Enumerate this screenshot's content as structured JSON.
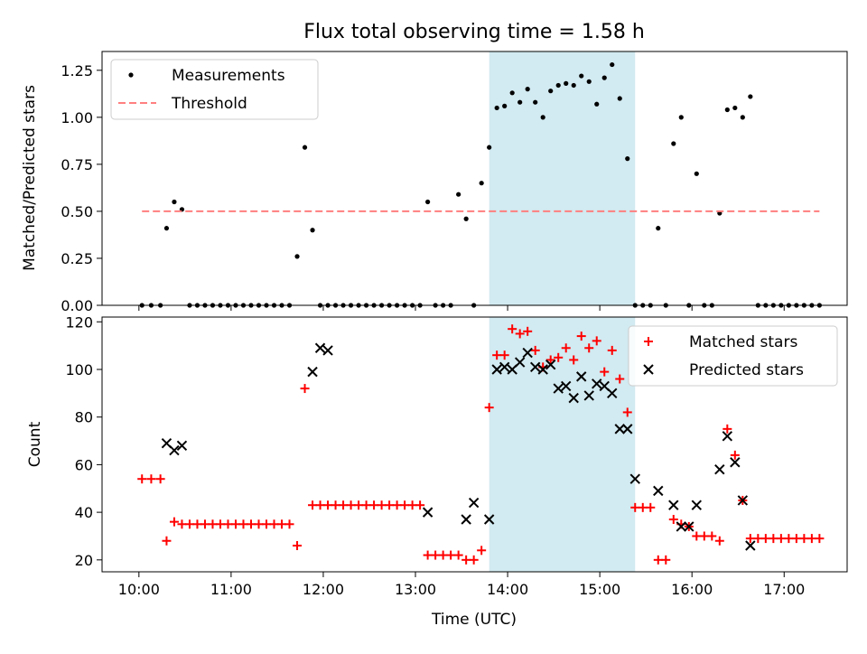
{
  "title": "Flux total observing time = 1.58 h",
  "shaded_band": {
    "start": "13:48",
    "end": "15:23",
    "color": "#add8e6"
  },
  "chart_data": [
    {
      "type": "scatter",
      "ylabel": "Matched/Predicted stars",
      "xlim": [
        "09:36",
        "17:41"
      ],
      "ylim": [
        0,
        1.35
      ],
      "yticks": [
        0.0,
        0.25,
        0.5,
        0.75,
        1.0,
        1.25
      ],
      "ytick_labels": [
        "0.00",
        "0.25",
        "0.50",
        "0.75",
        "1.00",
        "1.25"
      ],
      "legend": "top-left",
      "series": [
        {
          "name": "Measurements",
          "marker": "dot",
          "color": "#000000",
          "x": [
            "10:02",
            "10:08",
            "10:14",
            "10:18",
            "10:23",
            "10:28",
            "10:33",
            "10:38",
            "10:43",
            "10:48",
            "10:53",
            "10:58",
            "11:03",
            "11:08",
            "11:13",
            "11:18",
            "11:23",
            "11:28",
            "11:33",
            "11:38",
            "11:43",
            "11:48",
            "11:53",
            "11:58",
            "12:03",
            "12:08",
            "12:13",
            "12:18",
            "12:23",
            "12:28",
            "12:33",
            "12:38",
            "12:43",
            "12:48",
            "12:53",
            "12:58",
            "13:03",
            "13:08",
            "13:13",
            "13:18",
            "13:23",
            "13:28",
            "13:33",
            "13:38",
            "13:43",
            "13:48",
            "13:53",
            "13:58",
            "14:03",
            "14:08",
            "14:13",
            "14:18",
            "14:23",
            "14:28",
            "14:33",
            "14:38",
            "14:43",
            "14:48",
            "14:53",
            "14:58",
            "15:03",
            "15:08",
            "15:13",
            "15:18",
            "15:23",
            "15:28",
            "15:33",
            "15:38",
            "15:43",
            "15:48",
            "15:53",
            "15:58",
            "16:03",
            "16:08",
            "16:13",
            "16:18",
            "16:23",
            "16:28",
            "16:33",
            "16:38",
            "16:43",
            "16:48",
            "16:53",
            "16:58",
            "17:03",
            "17:08",
            "17:13",
            "17:18",
            "17:23"
          ],
          "y": [
            0,
            0,
            0,
            0.41,
            0.55,
            0.51,
            0,
            0,
            0,
            0,
            0,
            0,
            0,
            0,
            0,
            0,
            0,
            0,
            0,
            0,
            0.26,
            0.84,
            0.4,
            0,
            0,
            0,
            0,
            0,
            0,
            0,
            0,
            0,
            0,
            0,
            0,
            0,
            0,
            0.55,
            0,
            0,
            0,
            0.59,
            0.46,
            0,
            0.65,
            0.84,
            1.05,
            1.06,
            1.13,
            1.08,
            1.15,
            1.08,
            1.0,
            1.14,
            1.17,
            1.18,
            1.17,
            1.22,
            1.19,
            1.07,
            1.21,
            1.28,
            1.1,
            0.78,
            0,
            0,
            0,
            0.41,
            0,
            0.86,
            1.0,
            0,
            0.7,
            0,
            0,
            0.49,
            1.04,
            1.05,
            1.0,
            1.11,
            0,
            0,
            0,
            0,
            0,
            0,
            0,
            0,
            0
          ]
        },
        {
          "name": "Threshold",
          "type": "line",
          "dash": "dashed",
          "color": "#ff7f7f",
          "x": [
            "10:02",
            "17:23"
          ],
          "y": [
            0.5,
            0.5
          ]
        }
      ]
    },
    {
      "type": "scatter",
      "xlabel": "Time (UTC)",
      "ylabel": "Count",
      "xlim": [
        "09:36",
        "17:41"
      ],
      "ylim": [
        15,
        122
      ],
      "xticks": [
        "10:00",
        "11:00",
        "12:00",
        "13:00",
        "14:00",
        "15:00",
        "16:00",
        "17:00"
      ],
      "yticks": [
        20,
        40,
        60,
        80,
        100,
        120
      ],
      "legend": "top-right",
      "series": [
        {
          "name": "Matched stars",
          "marker": "plus",
          "color": "#ff0000",
          "x": [
            "10:02",
            "10:08",
            "10:14",
            "10:18",
            "10:23",
            "10:28",
            "10:33",
            "10:38",
            "10:43",
            "10:48",
            "10:53",
            "10:58",
            "11:03",
            "11:08",
            "11:13",
            "11:18",
            "11:23",
            "11:28",
            "11:33",
            "11:38",
            "11:43",
            "11:48",
            "11:53",
            "11:58",
            "12:03",
            "12:08",
            "12:13",
            "12:18",
            "12:23",
            "12:28",
            "12:33",
            "12:38",
            "12:43",
            "12:48",
            "12:53",
            "12:58",
            "13:03",
            "13:08",
            "13:13",
            "13:18",
            "13:23",
            "13:28",
            "13:33",
            "13:38",
            "13:43",
            "13:48",
            "13:53",
            "13:58",
            "14:03",
            "14:08",
            "14:13",
            "14:18",
            "14:23",
            "14:28",
            "14:33",
            "14:38",
            "14:43",
            "14:48",
            "14:53",
            "14:58",
            "15:03",
            "15:08",
            "15:13",
            "15:18",
            "15:23",
            "15:28",
            "15:33",
            "15:38",
            "15:43",
            "15:48",
            "15:53",
            "15:58",
            "16:03",
            "16:08",
            "16:13",
            "16:18",
            "16:23",
            "16:28",
            "16:33",
            "16:38",
            "16:43",
            "16:48",
            "16:53",
            "16:58",
            "17:03",
            "17:08",
            "17:13",
            "17:18",
            "17:23"
          ],
          "y": [
            54,
            54,
            54,
            28,
            36,
            35,
            35,
            35,
            35,
            35,
            35,
            35,
            35,
            35,
            35,
            35,
            35,
            35,
            35,
            35,
            26,
            92,
            43,
            43,
            43,
            43,
            43,
            43,
            43,
            43,
            43,
            43,
            43,
            43,
            43,
            43,
            43,
            22,
            22,
            22,
            22,
            22,
            20,
            20,
            24,
            84,
            106,
            106,
            117,
            115,
            116,
            108,
            101,
            104,
            105,
            109,
            104,
            114,
            109,
            112,
            99,
            108,
            96,
            82,
            42,
            42,
            42,
            20,
            20,
            37,
            35,
            34,
            30,
            30,
            30,
            28,
            75,
            64,
            45,
            29,
            29,
            29,
            29,
            29,
            29,
            29,
            29,
            29,
            29
          ]
        },
        {
          "name": "Predicted stars",
          "marker": "x",
          "color": "#000000",
          "x": [
            "10:18",
            "10:23",
            "10:28",
            "11:53",
            "11:58",
            "12:03",
            "13:08",
            "13:33",
            "13:38",
            "13:48",
            "13:53",
            "13:58",
            "14:03",
            "14:08",
            "14:13",
            "14:18",
            "14:23",
            "14:28",
            "14:33",
            "14:38",
            "14:43",
            "14:48",
            "14:53",
            "14:58",
            "15:03",
            "15:08",
            "15:13",
            "15:18",
            "15:23",
            "15:38",
            "15:48",
            "15:53",
            "15:58",
            "16:03",
            "16:18",
            "16:23",
            "16:28",
            "16:33",
            "16:38"
          ],
          "y": [
            69,
            66,
            68,
            99,
            109,
            108,
            40,
            37,
            44,
            37,
            100,
            101,
            100,
            103,
            107,
            101,
            100,
            102,
            92,
            93,
            88,
            97,
            89,
            94,
            93,
            90,
            75,
            75,
            54,
            49,
            43,
            34,
            34,
            43,
            58,
            72,
            61,
            45,
            26
          ]
        }
      ]
    }
  ]
}
